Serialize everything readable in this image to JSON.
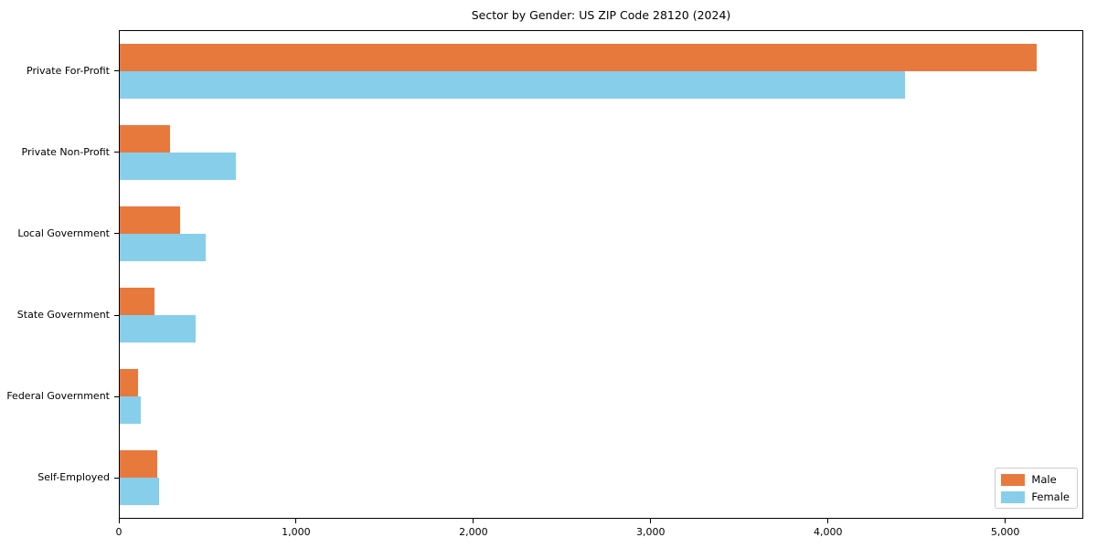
{
  "chart_data": {
    "type": "bar",
    "orientation": "horizontal",
    "title": "Sector by Gender: US ZIP Code 28120 (2024)",
    "categories": [
      "Private For-Profit",
      "Private Non-Profit",
      "Local Government",
      "State Government",
      "Federal Government",
      "Self-Employed"
    ],
    "series": [
      {
        "name": "Male",
        "color": "#E8793D",
        "values": [
          5180,
          285,
          340,
          195,
          105,
          210
        ]
      },
      {
        "name": "Female",
        "color": "#87CEEB",
        "values": [
          4440,
          655,
          485,
          430,
          120,
          220
        ]
      }
    ],
    "xlabel": "",
    "ylabel": "",
    "xlim": [
      0,
      5440
    ],
    "x_ticks": [
      0,
      1000,
      2000,
      3000,
      4000,
      5000
    ],
    "x_tick_labels": [
      "0",
      "1,000",
      "2,000",
      "3,000",
      "4,000",
      "5,000"
    ],
    "legend_position": "lower right",
    "grid": false,
    "background_color": "#ffffff",
    "spine_color": "#000000"
  }
}
